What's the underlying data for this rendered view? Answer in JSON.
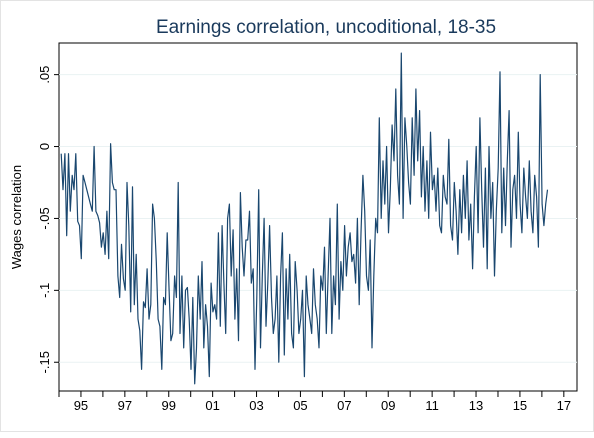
{
  "chart_data": {
    "type": "line",
    "title": "Earnings correlation, uncoditional, 18-35",
    "xlabel": "",
    "ylabel": "Wages correlation",
    "xlim": [
      1994.0,
      2017.6
    ],
    "ylim": [
      -0.17,
      0.072
    ],
    "grid": true,
    "legend": "none",
    "line_color": "#1a476f",
    "grid_color": "#eaf2f3",
    "x_ticks": [
      {
        "v": 1995,
        "label": "95"
      },
      {
        "v": 1997,
        "label": "97"
      },
      {
        "v": 1999,
        "label": "99"
      },
      {
        "v": 2001,
        "label": "01"
      },
      {
        "v": 2003,
        "label": "03"
      },
      {
        "v": 2005,
        "label": "05"
      },
      {
        "v": 2007,
        "label": "07"
      },
      {
        "v": 2009,
        "label": "09"
      },
      {
        "v": 2011,
        "label": "11"
      },
      {
        "v": 2013,
        "label": "13"
      },
      {
        "v": 2015,
        "label": "15"
      },
      {
        "v": 2017,
        "label": "17"
      }
    ],
    "x_minor_ticks": [
      1994,
      1996,
      1998,
      2000,
      2002,
      2004,
      2006,
      2008,
      2010,
      2012,
      2014,
      2016
    ],
    "y_ticks": [
      {
        "v": 0.05,
        "label": ".05"
      },
      {
        "v": 0,
        "label": "0"
      },
      {
        "v": -0.05,
        "label": "-.05"
      },
      {
        "v": -0.1,
        "label": "-.1"
      },
      {
        "v": -0.15,
        "label": "-.15"
      }
    ],
    "series": [
      {
        "x0": 1994.1,
        "dx": 0.0833,
        "values": [
          -0.005,
          -0.03,
          -0.005,
          -0.062,
          -0.005,
          -0.045,
          -0.02,
          -0.03,
          -0.005,
          -0.052,
          -0.055,
          -0.078,
          -0.02,
          -0.025,
          -0.03,
          -0.035,
          -0.04,
          -0.045,
          0.0,
          -0.045,
          -0.048,
          -0.053,
          -0.07,
          -0.06,
          -0.075,
          -0.045,
          -0.078,
          0.002,
          -0.025,
          -0.03,
          -0.03,
          -0.09,
          -0.105,
          -0.068,
          -0.092,
          -0.1,
          -0.025,
          -0.055,
          -0.115,
          -0.028,
          -0.11,
          -0.075,
          -0.12,
          -0.128,
          -0.155,
          -0.108,
          -0.112,
          -0.085,
          -0.12,
          -0.11,
          -0.04,
          -0.05,
          -0.08,
          -0.12,
          -0.125,
          -0.155,
          -0.105,
          -0.11,
          -0.06,
          -0.1,
          -0.135,
          -0.13,
          -0.09,
          -0.105,
          -0.025,
          -0.13,
          -0.09,
          -0.14,
          -0.1,
          -0.098,
          -0.12,
          -0.155,
          -0.105,
          -0.165,
          -0.14,
          -0.09,
          -0.12,
          -0.08,
          -0.14,
          -0.11,
          -0.125,
          -0.16,
          -0.095,
          -0.115,
          -0.11,
          -0.12,
          -0.06,
          -0.125,
          -0.055,
          -0.095,
          -0.13,
          -0.05,
          -0.04,
          -0.09,
          -0.058,
          -0.12,
          -0.085,
          -0.135,
          -0.032,
          -0.07,
          -0.09,
          -0.065,
          -0.065,
          -0.045,
          -0.095,
          -0.085,
          -0.155,
          -0.105,
          -0.03,
          -0.14,
          -0.09,
          -0.05,
          -0.125,
          -0.095,
          -0.055,
          -0.105,
          -0.13,
          -0.12,
          -0.09,
          -0.15,
          -0.09,
          -0.06,
          -0.145,
          -0.085,
          -0.12,
          -0.075,
          -0.13,
          -0.14,
          -0.08,
          -0.1,
          -0.13,
          -0.12,
          -0.1,
          -0.16,
          -0.09,
          -0.11,
          -0.12,
          -0.13,
          -0.085,
          -0.11,
          -0.12,
          -0.14,
          -0.09,
          -0.1,
          -0.07,
          -0.13,
          -0.09,
          -0.05,
          -0.13,
          -0.09,
          -0.11,
          -0.04,
          -0.12,
          -0.08,
          -0.1,
          -0.055,
          -0.09,
          -0.07,
          -0.06,
          -0.08,
          -0.075,
          -0.095,
          -0.05,
          -0.11,
          -0.06,
          -0.02,
          -0.045,
          -0.09,
          -0.1,
          -0.065,
          -0.14,
          -0.09,
          -0.05,
          -0.06,
          0.02,
          -0.05,
          -0.01,
          -0.04,
          0.0,
          -0.06,
          -0.03,
          0.015,
          -0.01,
          0.04,
          -0.02,
          -0.04,
          0.065,
          -0.05,
          0.02,
          0.0,
          -0.025,
          -0.04,
          0.02,
          -0.02,
          0.04,
          -0.01,
          0.025,
          -0.035,
          0.0,
          -0.045,
          -0.01,
          -0.05,
          0.01,
          -0.03,
          -0.02,
          -0.045,
          -0.015,
          -0.055,
          -0.06,
          -0.02,
          -0.035,
          -0.04,
          0.005,
          -0.055,
          -0.065,
          -0.025,
          -0.045,
          -0.075,
          -0.03,
          -0.06,
          -0.02,
          -0.05,
          -0.01,
          -0.065,
          -0.04,
          -0.085,
          -0.035,
          0.0,
          -0.06,
          0.02,
          -0.03,
          -0.07,
          -0.015,
          -0.085,
          0.0,
          -0.05,
          -0.025,
          -0.09,
          -0.045,
          -0.015,
          0.052,
          -0.06,
          -0.015,
          -0.055,
          -0.01,
          0.025,
          -0.07,
          -0.03,
          -0.02,
          -0.05,
          0.01,
          -0.04,
          -0.06,
          -0.015,
          -0.035,
          -0.05,
          -0.01,
          -0.045,
          -0.06,
          -0.02,
          -0.035,
          -0.07,
          0.05,
          -0.04,
          -0.055,
          -0.04,
          -0.03
        ]
      }
    ]
  }
}
